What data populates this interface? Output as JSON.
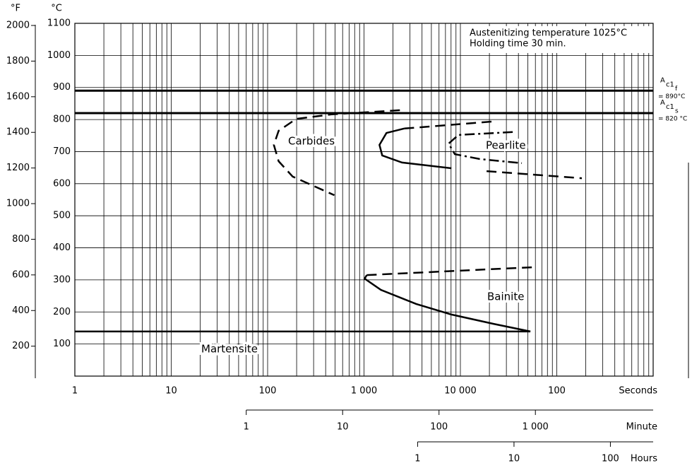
{
  "chart_data": {
    "type": "line",
    "y_axis_label": "°C",
    "y2_axis_label": "°F",
    "x_axis_label": "Seconds",
    "xscale": "log",
    "xlim": [
      1,
      1000000
    ],
    "xticks": [
      1,
      10,
      100,
      {
        "value": 1000,
        "label": "1 000"
      },
      {
        "value": 10000,
        "label": "10 000"
      },
      {
        "value": 100000,
        "label": "100"
      }
    ],
    "ylim": [
      0,
      1100
    ],
    "yticks": [
      100,
      200,
      300,
      400,
      500,
      600,
      700,
      800,
      900,
      1000,
      1100
    ],
    "y2lim": [
      32,
      2012
    ],
    "y2ticks": [
      200,
      400,
      600,
      800,
      1000,
      1200,
      1400,
      1600,
      1800,
      2000
    ],
    "grid": true,
    "minute_axis": {
      "label": "Minute",
      "xlim": [
        0.016667,
        16666.67
      ],
      "xticks": [
        1,
        10,
        100,
        {
          "value": 1000,
          "label": "1 000"
        }
      ]
    },
    "hour_axis": {
      "label": "Hours",
      "xlim": [
        0.000278,
        277.78
      ],
      "xticks": [
        1,
        10,
        100
      ]
    },
    "info": [
      "Austenitizing temperature 1025°C",
      "Holding time 30 min."
    ],
    "ref_lines": [
      {
        "value": 890,
        "symbol": "A",
        "sub": "c1",
        "subsub": "f",
        "label": "= 890°C"
      },
      {
        "value": 820,
        "symbol": "A",
        "sub": "c1",
        "subsub": "s",
        "label": "= 820 °C"
      }
    ],
    "annotations": [
      "Carbides",
      "Pearlite",
      "Bainite",
      "Martensite"
    ],
    "color": "#000000",
    "series": [
      {
        "style": "dashed",
        "x": [
          2357,
          460,
          198,
          130,
          116,
          130,
          182,
          492
        ],
        "y": [
          829,
          816,
          802,
          765,
          721,
          670,
          622,
          564
        ]
      },
      {
        "style": "solid",
        "x": [
          2610,
          1710,
          1446,
          1546,
          2480,
          8060
        ],
        "y": [
          772,
          758,
          721,
          688,
          666,
          648
        ]
      },
      {
        "style": "dashed",
        "x": [
          2610,
          22100
        ],
        "y": [
          772,
          794
        ]
      },
      {
        "style": "dashed",
        "x": [
          18700,
          182000
        ],
        "y": [
          639,
          617
        ]
      },
      {
        "style": "dashdot",
        "x": [
          34900,
          9540,
          7540,
          8770,
          15800,
          43400
        ],
        "y": [
          761,
          752,
          725,
          692,
          677,
          664
        ]
      },
      {
        "style": "dashed",
        "x": [
          1068,
          60800
        ],
        "y": [
          315,
          340
        ]
      },
      {
        "style": "solid",
        "x": [
          1068,
          1016,
          1496,
          3470,
          8060,
          22100,
          53200
        ],
        "y": [
          315,
          304,
          269,
          225,
          192,
          163,
          139
        ]
      },
      {
        "style": "solid",
        "x": [
          1,
          53200
        ],
        "y": [
          139,
          139
        ]
      }
    ]
  }
}
